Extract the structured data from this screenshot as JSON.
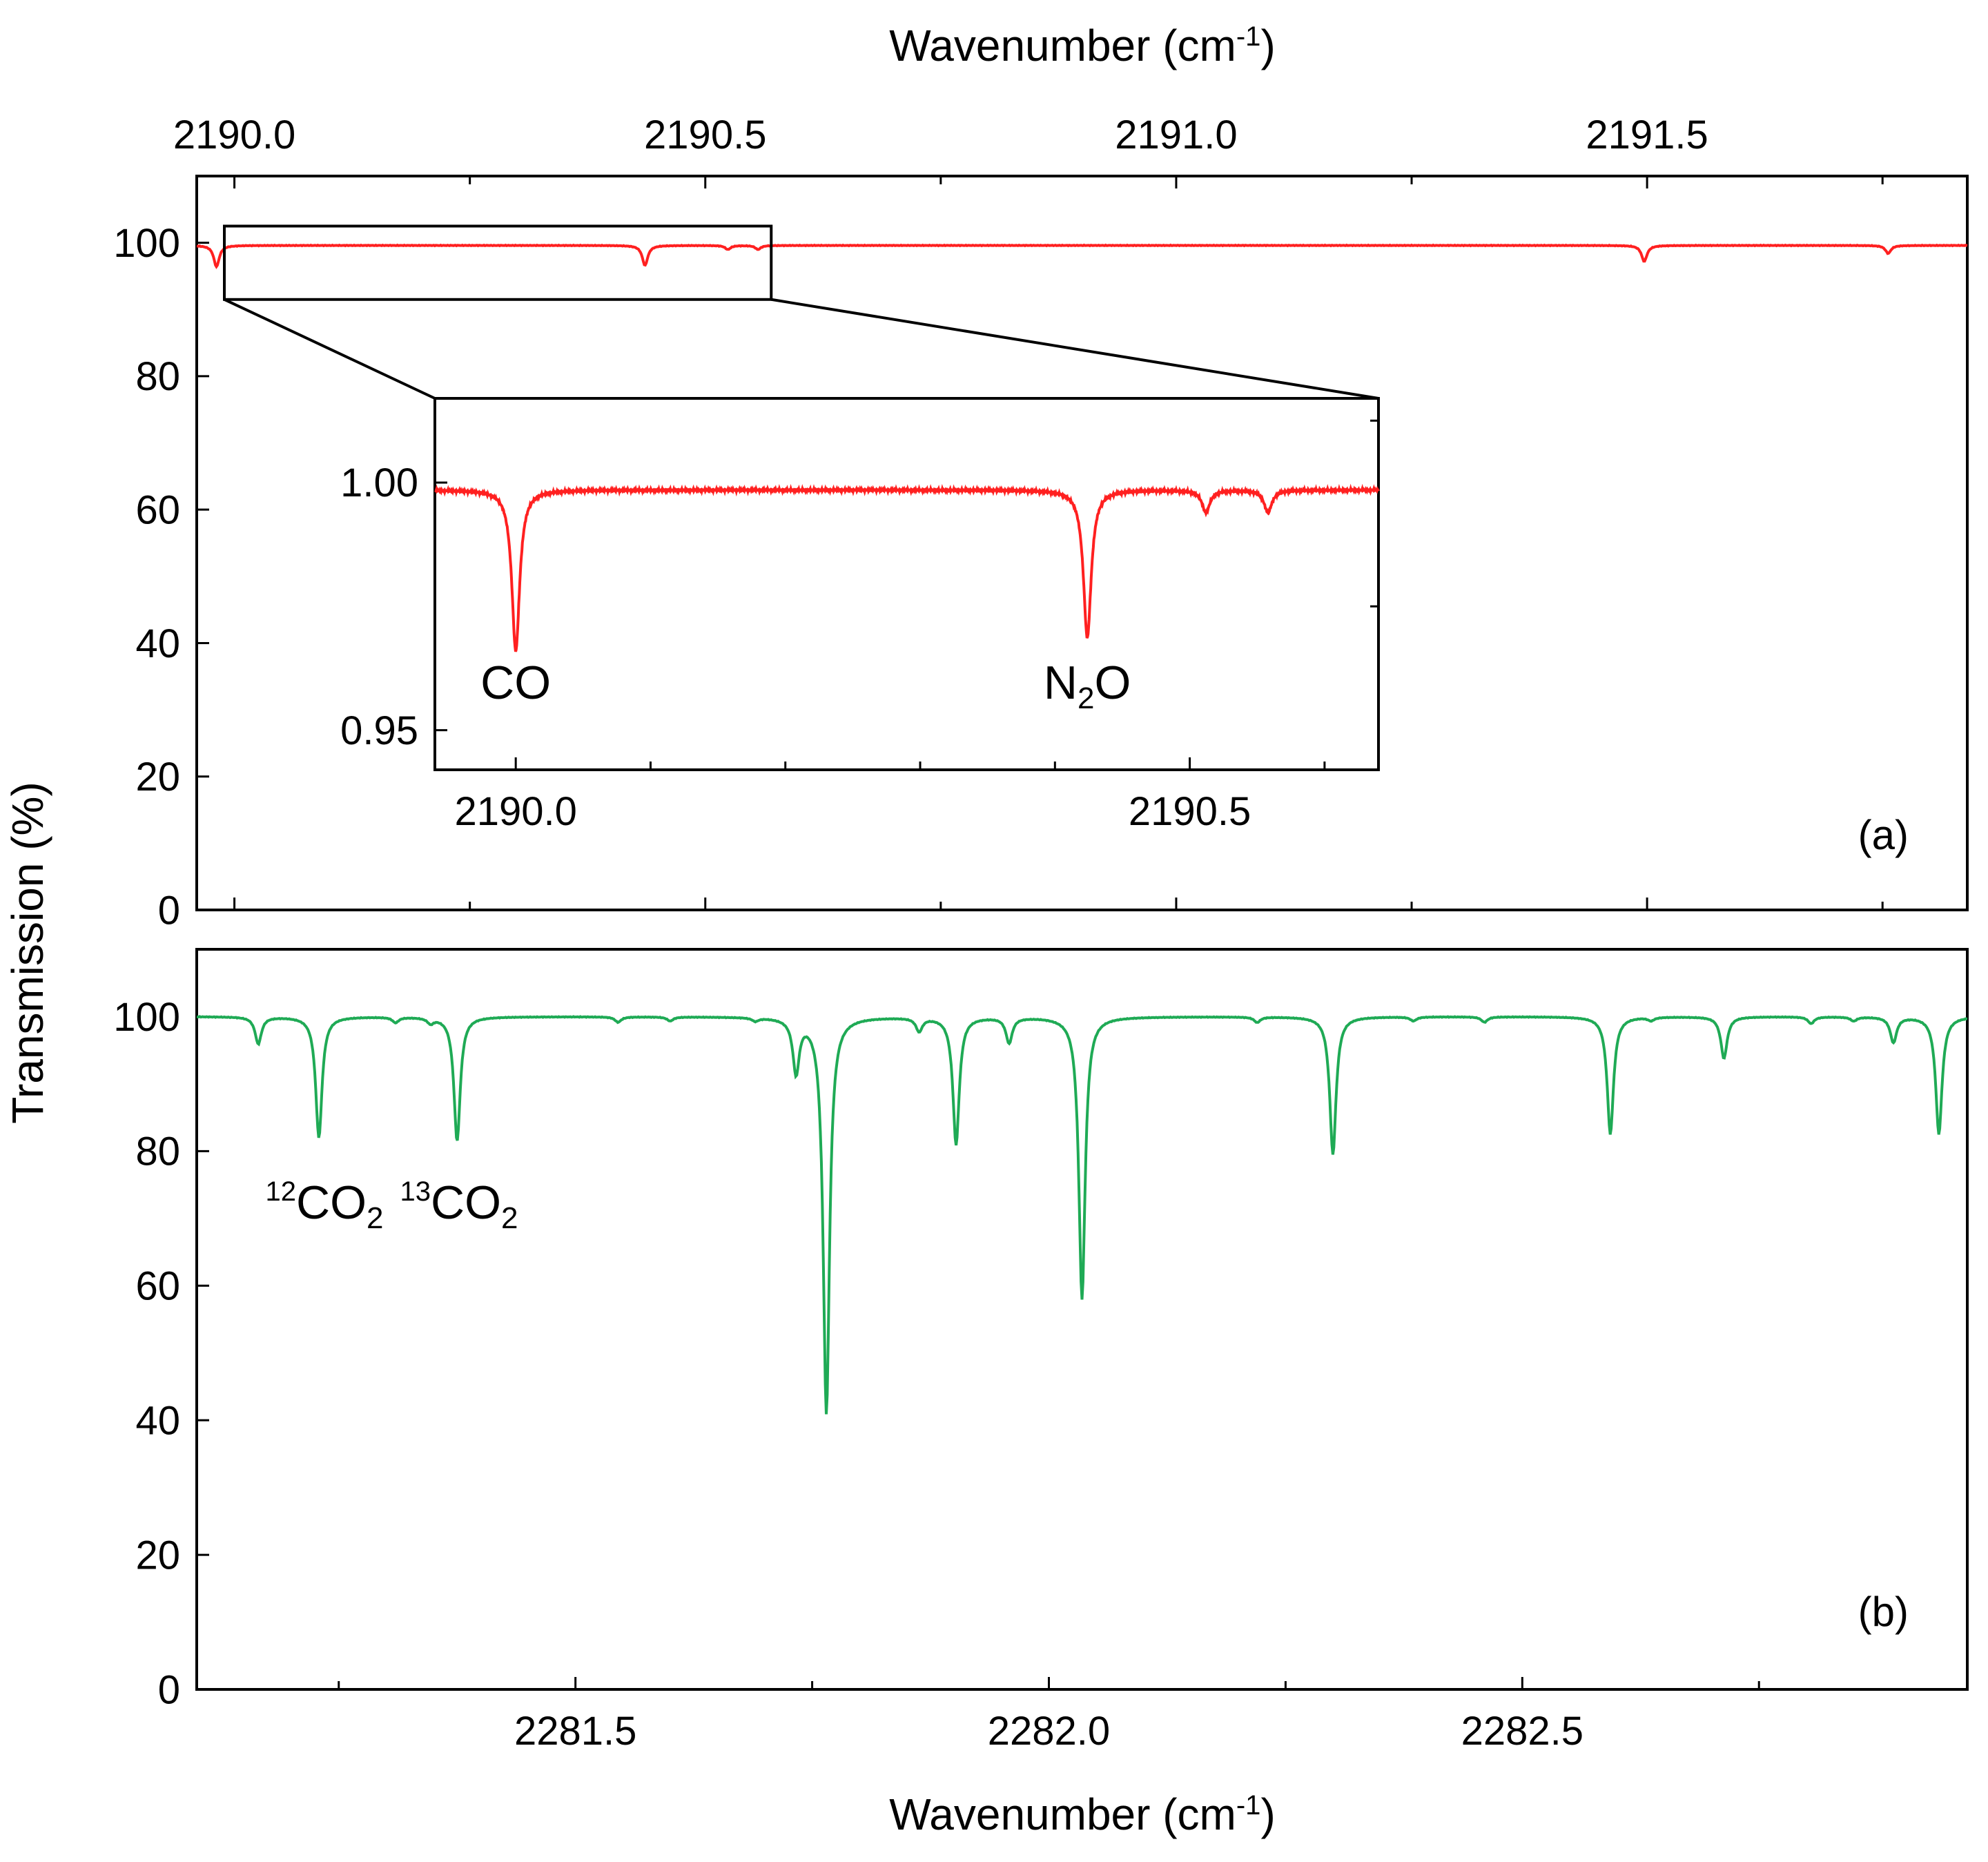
{
  "chart_data": [
    {
      "id": "a",
      "type": "line",
      "panel_label": "(a)",
      "xlabel": "Wavenumber (cm-1)",
      "xlabel_main": "Wavenumber (cm",
      "xlabel_sup": "-1",
      "xlabel_close": ")",
      "ylabel": "Transmission (%)",
      "xlim": [
        2189.96,
        2191.84
      ],
      "ylim": [
        0,
        110
      ],
      "x_ticks": [
        "2190.0",
        "2190.5",
        "2191.0",
        "2191.5"
      ],
      "y_ticks": [
        "0",
        "20",
        "40",
        "60",
        "80",
        "100"
      ],
      "color": "#ff2020",
      "baseline": 99.6,
      "peaks": [
        {
          "x": 2189.981,
          "depth": 3.2,
          "width": 0.0035
        },
        {
          "x": 2190.436,
          "depth": 3.0,
          "width": 0.0035
        },
        {
          "x": 2190.524,
          "depth": 0.6,
          "width": 0.0035
        },
        {
          "x": 2190.556,
          "depth": 0.6,
          "width": 0.0035
        },
        {
          "x": 2191.497,
          "depth": 2.4,
          "width": 0.0035
        },
        {
          "x": 2191.756,
          "depth": 1.2,
          "width": 0.0035
        }
      ],
      "zoom_box": {
        "x": [
          2189.96,
          2190.57
        ],
        "y": [
          91.5,
          102.5
        ]
      },
      "inset": {
        "xlim": [
          2189.94,
          2190.64
        ],
        "ylim": [
          0.942,
          1.017
        ],
        "x_ticks": [
          "2190.0",
          "2190.5"
        ],
        "y_ticks": [
          "0.95",
          "1.00"
        ],
        "baseline": 0.9985,
        "peaks": [
          {
            "x": 2190.0,
            "depth": 0.0325,
            "width": 0.0035
          },
          {
            "x": 2190.424,
            "depth": 0.0298,
            "width": 0.0035
          },
          {
            "x": 2190.512,
            "depth": 0.0045,
            "width": 0.0035
          },
          {
            "x": 2190.558,
            "depth": 0.0045,
            "width": 0.0035
          }
        ],
        "annotations": [
          {
            "text": "CO",
            "x": 2190.0
          },
          {
            "text_main": "N",
            "text_sub": "2",
            "text_end": "O",
            "x": 2190.424
          }
        ]
      }
    },
    {
      "id": "b",
      "type": "line",
      "panel_label": "(b)",
      "xlabel": "Wavenumber (cm-1)",
      "xlabel_main": "Wavenumber (cm",
      "xlabel_sup": "-1",
      "xlabel_close": ")",
      "ylabel": "Transmission (%)",
      "xlim": [
        2281.1,
        2282.97
      ],
      "ylim": [
        0,
        110
      ],
      "x_ticks": [
        "2281.5",
        "2282.0",
        "2282.5"
      ],
      "y_ticks": [
        "0",
        "20",
        "40",
        "60",
        "80",
        "100"
      ],
      "color": "#1faa55",
      "baseline": 100,
      "peaks": [
        {
          "x": 2281.165,
          "depth": 4.0,
          "width": 0.004
        },
        {
          "x": 2281.229,
          "depth": 18.0,
          "width": 0.004
        },
        {
          "x": 2281.31,
          "depth": 0.8,
          "width": 0.004
        },
        {
          "x": 2281.347,
          "depth": 0.8,
          "width": 0.004
        },
        {
          "x": 2281.375,
          "depth": 18.5,
          "width": 0.004
        },
        {
          "x": 2281.545,
          "depth": 0.8,
          "width": 0.004
        },
        {
          "x": 2281.6,
          "depth": 0.6,
          "width": 0.004
        },
        {
          "x": 2281.69,
          "depth": 0.5,
          "width": 0.004
        },
        {
          "x": 2281.733,
          "depth": 8.0,
          "width": 0.004
        },
        {
          "x": 2281.765,
          "depth": 59.0,
          "width": 0.004
        },
        {
          "x": 2281.863,
          "depth": 2.0,
          "width": 0.004
        },
        {
          "x": 2281.902,
          "depth": 19.0,
          "width": 0.004
        },
        {
          "x": 2281.958,
          "depth": 3.8,
          "width": 0.004
        },
        {
          "x": 2282.035,
          "depth": 42.0,
          "width": 0.004
        },
        {
          "x": 2282.22,
          "depth": 0.8,
          "width": 0.004
        },
        {
          "x": 2282.3,
          "depth": 20.5,
          "width": 0.004
        },
        {
          "x": 2282.385,
          "depth": 0.6,
          "width": 0.004
        },
        {
          "x": 2282.46,
          "depth": 0.8,
          "width": 0.004
        },
        {
          "x": 2282.593,
          "depth": 17.5,
          "width": 0.004
        },
        {
          "x": 2282.636,
          "depth": 0.5,
          "width": 0.004
        },
        {
          "x": 2282.713,
          "depth": 6.2,
          "width": 0.004
        },
        {
          "x": 2282.805,
          "depth": 1.0,
          "width": 0.004
        },
        {
          "x": 2282.85,
          "depth": 0.6,
          "width": 0.004
        },
        {
          "x": 2282.892,
          "depth": 3.8,
          "width": 0.004
        },
        {
          "x": 2282.94,
          "depth": 17.5,
          "width": 0.004
        }
      ],
      "annotations": [
        {
          "sup": "12",
          "main": "CO",
          "sub": "2",
          "x": 2281.229
        },
        {
          "sup": "13",
          "main": "CO",
          "sub": "2",
          "x": 2281.375
        }
      ]
    }
  ]
}
